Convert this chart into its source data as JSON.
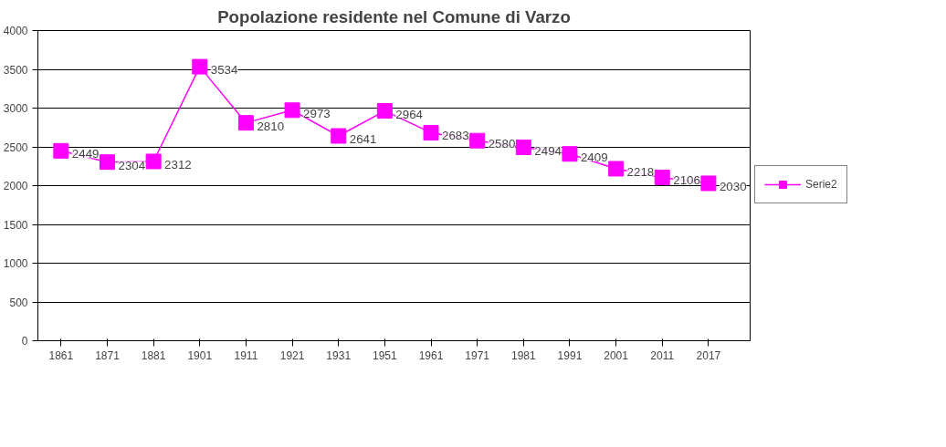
{
  "chart_data": {
    "type": "line",
    "title": "Popolazione residente nel Comune di Varzo",
    "categories": [
      "1861",
      "1871",
      "1881",
      "1901",
      "1911",
      "1921",
      "1931",
      "1951",
      "1961",
      "1971",
      "1981",
      "1991",
      "2001",
      "2011",
      "2017"
    ],
    "series": [
      {
        "name": "Serie2",
        "color": "#ff00ff",
        "values": [
          2449,
          2304,
          2312,
          3534,
          2810,
          2973,
          2641,
          2964,
          2683,
          2580,
          2494,
          2409,
          2218,
          2106,
          2030
        ]
      }
    ],
    "ylim": [
      0,
      4000
    ],
    "yticks": [
      0,
      500,
      1000,
      1500,
      2000,
      2500,
      3000,
      3500,
      4000
    ],
    "grid": "y",
    "legend": "right",
    "marker": "square",
    "line_style": "solid",
    "data_labels": true
  }
}
